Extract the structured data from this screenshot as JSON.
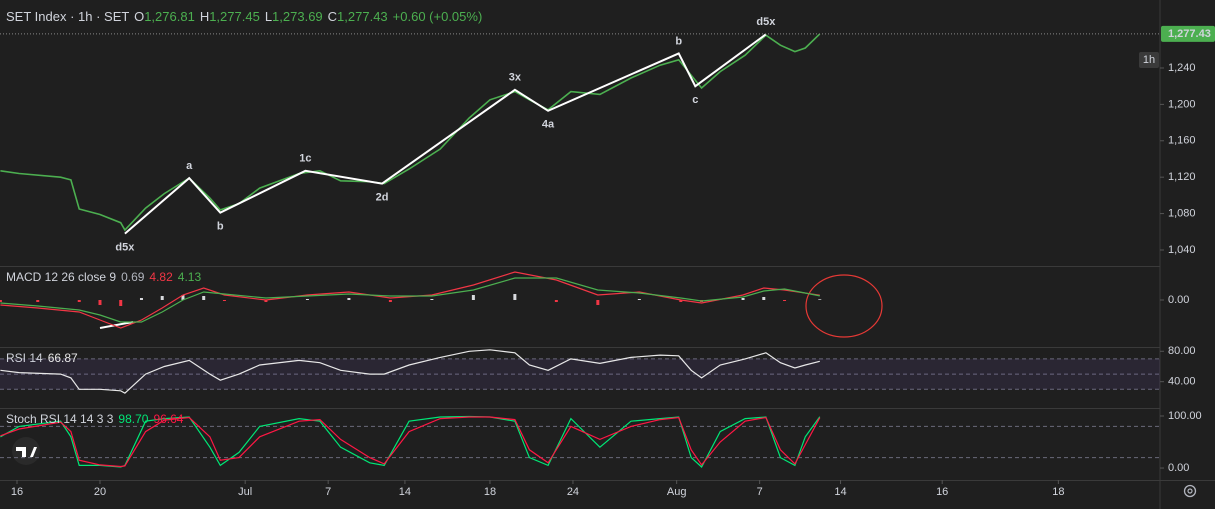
{
  "chart_data": [
    {
      "type": "line",
      "title": "SET Index · 1h · SET",
      "ohlc": [
        {
          "key": "O",
          "value": "1,276.81"
        },
        {
          "key": "H",
          "value": "1,277.45"
        },
        {
          "key": "L",
          "value": "1,273.69"
        },
        {
          "key": "C",
          "value": "1,277.43"
        }
      ],
      "change": "+0.60 (+0.05%)",
      "interval_badge": "1h",
      "last_price": {
        "value": 1277.43,
        "label": "1,277.43"
      },
      "xlim": [
        -0.82,
        55.1
      ],
      "xticks": [
        {
          "value": 0,
          "label": "16"
        },
        {
          "value": 4,
          "label": "20"
        },
        {
          "value": 11,
          "label": "Jul"
        },
        {
          "value": 15,
          "label": "7"
        },
        {
          "value": 18.7,
          "label": "14"
        },
        {
          "value": 22.8,
          "label": "18"
        },
        {
          "value": 26.8,
          "label": "24"
        },
        {
          "value": 31.8,
          "label": "Aug"
        },
        {
          "value": 35.8,
          "label": "7"
        },
        {
          "value": 39.7,
          "label": "14"
        },
        {
          "value": 44.6,
          "label": "16"
        },
        {
          "value": 50.2,
          "label": "18"
        }
      ],
      "ylim": [
        1023.5,
        1314.7
      ],
      "yticks": [
        {
          "value": 1040,
          "label": "1,040"
        },
        {
          "value": 1080,
          "label": "1,080"
        },
        {
          "value": 1120,
          "label": "1,120"
        },
        {
          "value": 1160,
          "label": "1,160"
        },
        {
          "value": 1200,
          "label": "1,200"
        },
        {
          "value": 1240,
          "label": "1,240"
        }
      ],
      "x": [
        -0.8,
        0.1,
        2.1,
        2.6,
        3.0,
        4.0,
        5.0,
        5.2,
        6.2,
        7.1,
        8.3,
        9.3,
        9.8,
        10.7,
        11.7,
        13.6,
        14.6,
        15.6,
        17.0,
        17.7,
        18.9,
        20.4,
        21.8,
        22.8,
        24.0,
        24.7,
        25.6,
        26.7,
        28.1,
        29.6,
        31.0,
        31.9,
        32.5,
        33.0,
        33.9,
        35.1,
        36.1,
        36.8,
        37.5,
        38.0,
        38.7
      ],
      "series": [
        {
          "style": "line",
          "color": "#4caf50",
          "values": [
            1127,
            1124,
            1120,
            1117,
            1085,
            1079,
            1070,
            1062,
            1086,
            1102,
            1119,
            1097,
            1084,
            1091,
            1108,
            1124,
            1127,
            1116,
            1115,
            1113,
            1129,
            1151,
            1185,
            1205,
            1214,
            1205,
            1194,
            1214,
            1211,
            1229,
            1243,
            1249,
            1232,
            1218,
            1236,
            1254,
            1276,
            1265,
            1258,
            1262,
            1277.43
          ]
        }
      ],
      "waves": {
        "color": "#ffffff",
        "labels": [
          "d5x",
          "a",
          "b",
          "1c",
          "2d",
          "3x",
          "4a",
          "b",
          "c",
          "d5x"
        ],
        "x": [
          5.2,
          8.3,
          9.8,
          13.9,
          17.6,
          24.0,
          25.6,
          31.9,
          32.7,
          36.1
        ],
        "y": [
          1058,
          1119,
          1081,
          1127,
          1113,
          1216,
          1193,
          1256,
          1220,
          1277
        ]
      }
    },
    {
      "type": "line",
      "title": "MACD 12 26 close 9",
      "legend_values": [
        "0.69",
        "4.82",
        "4.13"
      ],
      "ylim": [
        -45,
        32
      ],
      "yticks": [
        {
          "value": 0,
          "label": "0.00"
        }
      ],
      "x": [
        -0.8,
        1,
        3,
        4,
        5,
        6,
        7,
        8,
        9,
        10,
        12,
        14,
        16,
        18,
        20,
        22,
        24,
        26,
        28,
        30,
        32,
        33,
        35,
        36,
        37,
        38.7
      ],
      "series": [
        {
          "style": "histogram",
          "color": "#b2b5be",
          "up_color": "#d8dade",
          "down_color": "#f23645",
          "values": [
            -2,
            -2,
            -2,
            -5,
            -6,
            2,
            4,
            5,
            4,
            -1,
            -2,
            1,
            2,
            -2,
            1,
            5,
            6,
            -2,
            -5,
            1,
            -2,
            -2,
            2,
            3,
            -1,
            0.69
          ]
        },
        {
          "style": "line",
          "color": "#f23645",
          "values": [
            -5,
            -8,
            -12,
            -20,
            -28,
            -20,
            -8,
            5,
            12,
            5,
            0,
            5,
            8,
            2,
            5,
            15,
            28,
            20,
            5,
            8,
            0,
            -3,
            5,
            12,
            10,
            4.82
          ]
        },
        {
          "style": "line",
          "color": "#4caf50",
          "values": [
            -3,
            -6,
            -10,
            -15,
            -22,
            -22,
            -12,
            0,
            8,
            6,
            2,
            4,
            6,
            4,
            4,
            10,
            22,
            22,
            10,
            7,
            2,
            -1,
            3,
            9,
            11,
            4.13
          ]
        }
      ]
    },
    {
      "type": "line",
      "title": "RSI 14",
      "legend_values": [
        "66.87"
      ],
      "ylim": [
        8,
        83
      ],
      "yticks": [
        {
          "value": 40,
          "label": "40.00"
        },
        {
          "value": 80,
          "label": "80.00"
        }
      ],
      "hlines": [
        70,
        50,
        30
      ],
      "band": [
        30,
        70
      ],
      "x": [
        -0.8,
        0.1,
        2.1,
        2.6,
        3.0,
        4.0,
        5.0,
        5.2,
        6.2,
        7.1,
        8.3,
        9.3,
        9.8,
        10.7,
        11.7,
        13.6,
        14.6,
        15.6,
        17.0,
        17.7,
        18.9,
        20.4,
        21.8,
        22.8,
        24.0,
        24.7,
        25.6,
        26.7,
        28.1,
        29.6,
        31.0,
        31.9,
        32.5,
        33.0,
        33.9,
        35.1,
        36.1,
        36.8,
        37.5,
        38.0,
        38.7
      ],
      "series": [
        {
          "style": "line",
          "color": "#e8e8e8",
          "values": [
            55,
            52,
            50,
            45,
            30,
            30,
            28,
            25,
            50,
            60,
            68,
            50,
            42,
            50,
            62,
            68,
            65,
            55,
            50,
            50,
            62,
            72,
            80,
            82,
            78,
            62,
            55,
            70,
            64,
            72,
            75,
            74,
            55,
            45,
            62,
            70,
            78,
            65,
            58,
            62,
            66.87
          ]
        }
      ]
    },
    {
      "type": "line",
      "title": "Stoch RSI 14 14 3 3",
      "legend_values": [
        "98.70",
        "96.64"
      ],
      "ylim": [
        -23,
        111.5
      ],
      "yticks": [
        {
          "value": 0,
          "label": "0.00"
        },
        {
          "value": 100,
          "label": "100.00"
        }
      ],
      "hlines": [
        80,
        20
      ],
      "x": [
        -0.8,
        0.1,
        2.1,
        2.6,
        3.0,
        4.0,
        5.0,
        5.2,
        6.2,
        7.1,
        8.3,
        9.3,
        9.8,
        10.7,
        11.7,
        13.6,
        14.6,
        15.6,
        17.0,
        17.7,
        18.9,
        20.4,
        21.8,
        22.8,
        24.0,
        24.7,
        25.6,
        26.7,
        28.1,
        29.6,
        31.0,
        31.9,
        32.5,
        33.0,
        33.9,
        35.1,
        36.1,
        36.8,
        37.5,
        38.0,
        38.7
      ],
      "series": [
        {
          "style": "line",
          "color": "#00e676",
          "values": [
            60,
            80,
            90,
            60,
            5,
            5,
            2,
            5,
            90,
            95,
            98,
            40,
            5,
            30,
            80,
            95,
            90,
            40,
            10,
            5,
            90,
            98,
            99,
            98,
            90,
            20,
            5,
            95,
            40,
            90,
            95,
            98,
            20,
            2,
            70,
            95,
            98,
            20,
            5,
            60,
            98.7
          ]
        },
        {
          "style": "line",
          "color": "#ff1744",
          "values": [
            62,
            75,
            88,
            70,
            15,
            6,
            3,
            4,
            70,
            92,
            97,
            60,
            15,
            20,
            60,
            90,
            93,
            55,
            20,
            8,
            70,
            95,
            98,
            98,
            93,
            35,
            10,
            80,
            55,
            80,
            93,
            97,
            35,
            6,
            50,
            90,
            97,
            35,
            8,
            45,
            96.64
          ]
        }
      ]
    }
  ]
}
